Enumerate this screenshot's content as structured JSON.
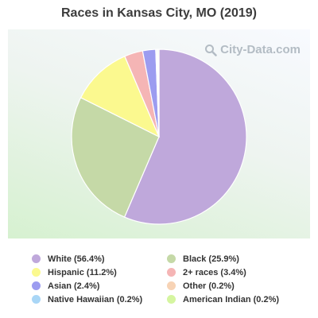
{
  "chart_data": {
    "type": "pie",
    "title": "Races in Kansas City, MO (2019)",
    "unit": "%",
    "slices": [
      {
        "label": "White",
        "value": 56.4,
        "display": "White (56.4%)",
        "color": "#bfa8db"
      },
      {
        "label": "Black",
        "value": 25.9,
        "display": "Black (25.9%)",
        "color": "#c5d9a7"
      },
      {
        "label": "Hispanic",
        "value": 11.2,
        "display": "Hispanic (11.2%)",
        "color": "#fbf98f"
      },
      {
        "label": "2+ races",
        "value": 3.4,
        "display": "2+ races (3.4%)",
        "color": "#f5b5b5"
      },
      {
        "label": "Asian",
        "value": 2.4,
        "display": "Asian (2.4%)",
        "color": "#9c9cf0"
      },
      {
        "label": "Other",
        "value": 0.2,
        "display": "Other (0.2%)",
        "color": "#f7d3b5"
      },
      {
        "label": "Native Hawaiian",
        "value": 0.2,
        "display": "Native Hawaiian (0.2%)",
        "color": "#a9d6f6"
      },
      {
        "label": "American Indian",
        "value": 0.2,
        "display": "American Indian (0.2%)",
        "color": "#d5f5a0"
      }
    ],
    "legend_order": [
      "White",
      "Black",
      "Hispanic",
      "2+ races",
      "Asian",
      "Other",
      "Native Hawaiian",
      "American Indian"
    ],
    "legend_placement": "bottom"
  },
  "watermark": {
    "text": "City-Data.com",
    "icon": "magnifier-icon"
  }
}
